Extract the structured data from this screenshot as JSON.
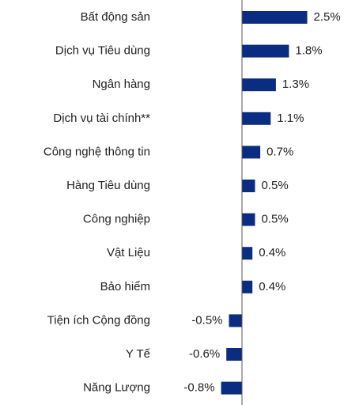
{
  "chart_data": {
    "type": "bar",
    "orientation": "horizontal",
    "categories": [
      "Bất động sản",
      "Dịch vụ Tiêu dùng",
      "Ngân hàng",
      "Dịch vụ tài chính**",
      "Công nghệ thông tin",
      "Hàng Tiêu dùng",
      "Công nghiệp",
      "Vật Liệu",
      "Bảo hiểm",
      "Tiện ích Cộng đồng",
      "Y Tế",
      "Năng Lượng"
    ],
    "values": [
      2.5,
      1.8,
      1.3,
      1.1,
      0.7,
      0.5,
      0.5,
      0.4,
      0.4,
      -0.5,
      -0.6,
      -0.8
    ],
    "value_labels": [
      "2.5%",
      "1.8%",
      "1.3%",
      "1.1%",
      "0.7%",
      "0.5%",
      "0.5%",
      "0.4%",
      "0.4%",
      "-0.5%",
      "-0.6%",
      "-0.8%"
    ],
    "color": "#0a2d82"
  }
}
